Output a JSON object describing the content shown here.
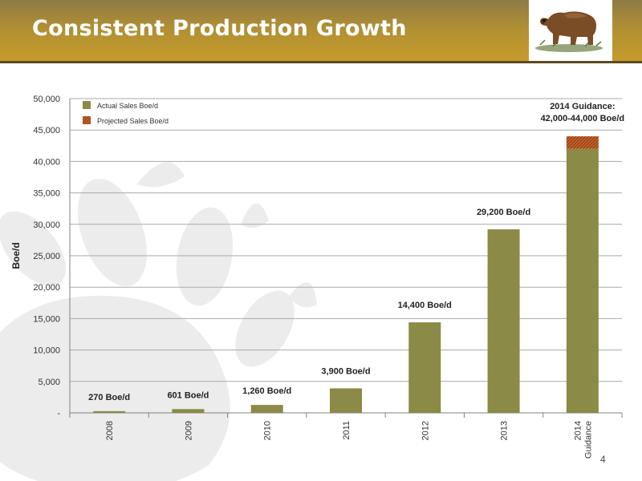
{
  "slide": {
    "title": "Consistent Production Growth",
    "page_number": "4"
  },
  "colors": {
    "header_gold": "#c69b2a",
    "actual": "#8b8a46",
    "projected": "#c4632b",
    "paw": "#ececec"
  },
  "icons": {
    "logo": "bear-logo-icon",
    "background": "bear-paw-watermark-icon"
  },
  "chart_data": {
    "type": "bar",
    "stacked": true,
    "categories": [
      "2008",
      "2009",
      "2010",
      "2011",
      "2012",
      "2013",
      "2014 Guidance"
    ],
    "category_lines": [
      [
        "2008"
      ],
      [
        "2009"
      ],
      [
        "2010"
      ],
      [
        "2011"
      ],
      [
        "2012"
      ],
      [
        "2013"
      ],
      [
        "2014",
        "Guidance"
      ]
    ],
    "series": [
      {
        "name": "Actual Sales Boe/d",
        "values": [
          270,
          601,
          1260,
          3900,
          14400,
          29200,
          42000
        ],
        "color": "#8b8a46"
      },
      {
        "name": "Projected Sales Boe/d",
        "values": [
          0,
          0,
          0,
          0,
          0,
          0,
          2000
        ],
        "color": "#c4632b"
      }
    ],
    "data_labels": [
      [
        "270 Boe/d"
      ],
      [
        "601 Boe/d"
      ],
      [
        "1,260 Boe/d"
      ],
      [
        "3,900 Boe/d"
      ],
      [
        "14,400 Boe/d"
      ],
      [
        "29,200 Boe/d"
      ],
      [
        "2014 Guidance:",
        "42,000-44,000 Boe/d"
      ]
    ],
    "ylabel": "Boe/d",
    "xlabel": "",
    "title": "",
    "ylim": [
      0,
      50000
    ],
    "yticks": [
      0,
      5000,
      10000,
      15000,
      20000,
      25000,
      30000,
      35000,
      40000,
      45000,
      50000
    ],
    "ytick_labels": [
      "-",
      "5,000",
      "10,000",
      "15,000",
      "20,000",
      "25,000",
      "30,000",
      "35,000",
      "40,000",
      "45,000",
      "50,000"
    ],
    "grid": true,
    "legend_position": "top-left"
  }
}
